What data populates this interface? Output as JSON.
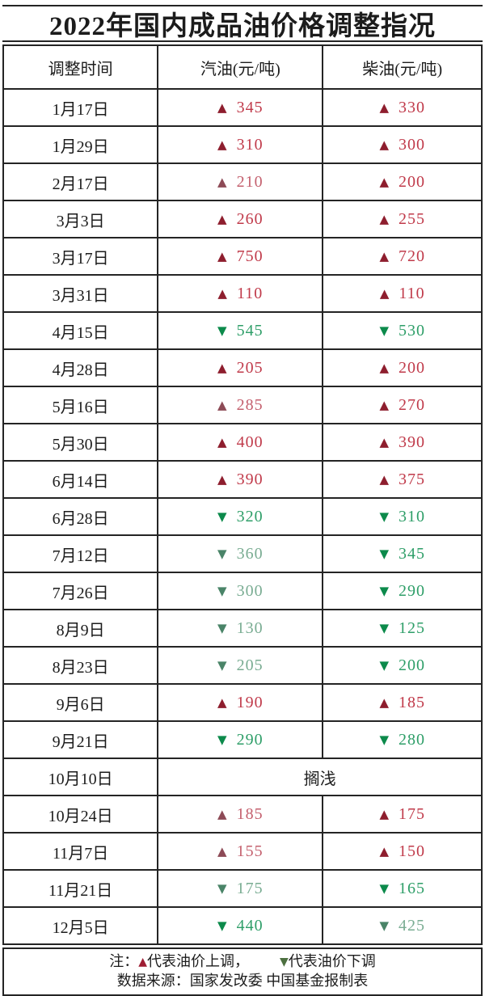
{
  "title": "2022年国内成品油价格调整指况",
  "columns": [
    "调整时间",
    "汽油(元/吨)",
    "柴油(元/吨)"
  ],
  "icons": {
    "up": "▲",
    "down": "▼"
  },
  "colors": {
    "ink": "#1c1c1c",
    "border": "#242424",
    "up-tri": "#8e1e2e",
    "up-num": "#c03a4a",
    "up-tri-muted": "#8d4a56",
    "up-num-muted": "#c4606e",
    "dn-tri": "#0c8a4b",
    "dn-num": "#2e9e68",
    "dn-tri-muted": "#4a8468",
    "dn-num-muted": "#79ac92",
    "legend-up": "#9e1d33",
    "legend-dn": "#4d7040"
  },
  "rows": [
    {
      "date": "1月17日",
      "gas": {
        "dir": "up",
        "value": "345",
        "muted": false
      },
      "diesel": {
        "dir": "up",
        "value": "330",
        "muted": false
      }
    },
    {
      "date": "1月29日",
      "gas": {
        "dir": "up",
        "value": "310",
        "muted": false
      },
      "diesel": {
        "dir": "up",
        "value": "300",
        "muted": false
      }
    },
    {
      "date": "2月17日",
      "gas": {
        "dir": "up",
        "value": "210",
        "muted": true
      },
      "diesel": {
        "dir": "up",
        "value": "200",
        "muted": false
      }
    },
    {
      "date": "3月3日",
      "gas": {
        "dir": "up",
        "value": "260",
        "muted": false
      },
      "diesel": {
        "dir": "up",
        "value": "255",
        "muted": false
      }
    },
    {
      "date": "3月17日",
      "gas": {
        "dir": "up",
        "value": "750",
        "muted": false
      },
      "diesel": {
        "dir": "up",
        "value": "720",
        "muted": false
      }
    },
    {
      "date": "3月31日",
      "gas": {
        "dir": "up",
        "value": "110",
        "muted": false
      },
      "diesel": {
        "dir": "up",
        "value": "110",
        "muted": false
      }
    },
    {
      "date": "4月15日",
      "gas": {
        "dir": "down",
        "value": "545",
        "muted": false
      },
      "diesel": {
        "dir": "down",
        "value": "530",
        "muted": false
      }
    },
    {
      "date": "4月28日",
      "gas": {
        "dir": "up",
        "value": "205",
        "muted": false
      },
      "diesel": {
        "dir": "up",
        "value": "200",
        "muted": false
      }
    },
    {
      "date": "5月16日",
      "gas": {
        "dir": "up",
        "value": "285",
        "muted": true
      },
      "diesel": {
        "dir": "up",
        "value": "270",
        "muted": false
      }
    },
    {
      "date": "5月30日",
      "gas": {
        "dir": "up",
        "value": "400",
        "muted": false
      },
      "diesel": {
        "dir": "up",
        "value": "390",
        "muted": false
      }
    },
    {
      "date": "6月14日",
      "gas": {
        "dir": "up",
        "value": "390",
        "muted": false
      },
      "diesel": {
        "dir": "up",
        "value": "375",
        "muted": false
      }
    },
    {
      "date": "6月28日",
      "gas": {
        "dir": "down",
        "value": "320",
        "muted": false
      },
      "diesel": {
        "dir": "down",
        "value": "310",
        "muted": false
      }
    },
    {
      "date": "7月12日",
      "gas": {
        "dir": "down",
        "value": "360",
        "muted": true
      },
      "diesel": {
        "dir": "down",
        "value": "345",
        "muted": false
      }
    },
    {
      "date": "7月26日",
      "gas": {
        "dir": "down",
        "value": "300",
        "muted": true
      },
      "diesel": {
        "dir": "down",
        "value": "290",
        "muted": false
      }
    },
    {
      "date": "8月9日",
      "gas": {
        "dir": "down",
        "value": "130",
        "muted": true
      },
      "diesel": {
        "dir": "down",
        "value": "125",
        "muted": false
      }
    },
    {
      "date": "8月23日",
      "gas": {
        "dir": "down",
        "value": "205",
        "muted": true
      },
      "diesel": {
        "dir": "down",
        "value": "200",
        "muted": false
      }
    },
    {
      "date": "9月6日",
      "gas": {
        "dir": "up",
        "value": "190",
        "muted": false
      },
      "diesel": {
        "dir": "up",
        "value": "185",
        "muted": false
      }
    },
    {
      "date": "9月21日",
      "gas": {
        "dir": "down",
        "value": "290",
        "muted": false
      },
      "diesel": {
        "dir": "down",
        "value": "280",
        "muted": false
      }
    },
    {
      "date": "10月10日",
      "merged": "搁浅"
    },
    {
      "date": "10月24日",
      "gas": {
        "dir": "up",
        "value": "185",
        "muted": true
      },
      "diesel": {
        "dir": "up",
        "value": "175",
        "muted": false
      }
    },
    {
      "date": "11月7日",
      "gas": {
        "dir": "up",
        "value": "155",
        "muted": true
      },
      "diesel": {
        "dir": "up",
        "value": "150",
        "muted": false
      }
    },
    {
      "date": "11月21日",
      "gas": {
        "dir": "down",
        "value": "175",
        "muted": true
      },
      "diesel": {
        "dir": "down",
        "value": "165",
        "muted": false
      }
    },
    {
      "date": "12月5日",
      "gas": {
        "dir": "down",
        "value": "440",
        "muted": false
      },
      "diesel": {
        "dir": "down",
        "value": "425",
        "muted": true
      }
    }
  ],
  "legend": {
    "note_prefix": "注：",
    "up_text": "代表油价上调，",
    "down_text": "代表油价下调",
    "source": "数据来源：国家发改委  中国基金报制表"
  }
}
